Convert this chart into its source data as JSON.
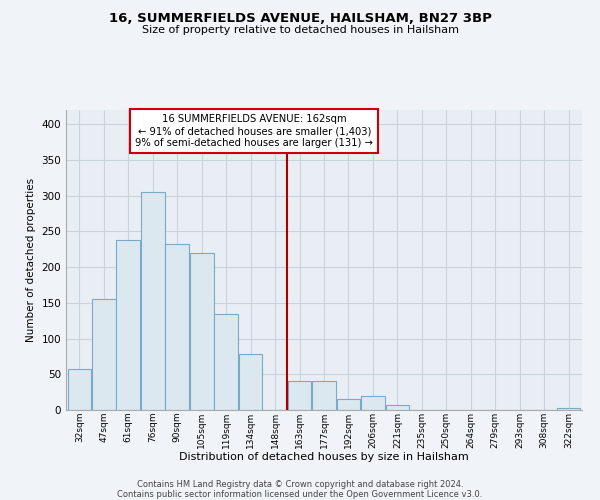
{
  "title": "16, SUMMERFIELDS AVENUE, HAILSHAM, BN27 3BP",
  "subtitle": "Size of property relative to detached houses in Hailsham",
  "xlabel": "Distribution of detached houses by size in Hailsham",
  "ylabel": "Number of detached properties",
  "bar_labels": [
    "32sqm",
    "47sqm",
    "61sqm",
    "76sqm",
    "90sqm",
    "105sqm",
    "119sqm",
    "134sqm",
    "148sqm",
    "163sqm",
    "177sqm",
    "192sqm",
    "206sqm",
    "221sqm",
    "235sqm",
    "250sqm",
    "264sqm",
    "279sqm",
    "293sqm",
    "308sqm",
    "322sqm"
  ],
  "bar_heights": [
    57,
    155,
    238,
    305,
    233,
    220,
    135,
    78,
    0,
    41,
    41,
    15,
    20,
    7,
    0,
    0,
    0,
    0,
    0,
    0,
    3
  ],
  "bar_color": "#dce8f0",
  "bar_edge_color": "#7aaac8",
  "ylim": [
    0,
    420
  ],
  "yticks": [
    0,
    50,
    100,
    150,
    200,
    250,
    300,
    350,
    400
  ],
  "vline_color": "#aa0000",
  "annotation_title": "16 SUMMERFIELDS AVENUE: 162sqm",
  "annotation_line1": "← 91% of detached houses are smaller (1,403)",
  "annotation_line2": "9% of semi-detached houses are larger (131) →",
  "annotation_box_color": "#ffffff",
  "annotation_box_edge": "#cc0000",
  "footnote1": "Contains HM Land Registry data © Crown copyright and database right 2024.",
  "footnote2": "Contains public sector information licensed under the Open Government Licence v3.0.",
  "bg_color": "#f0f4f8",
  "plot_bg_color": "#e8eef4",
  "grid_color": "#c8d4dc"
}
